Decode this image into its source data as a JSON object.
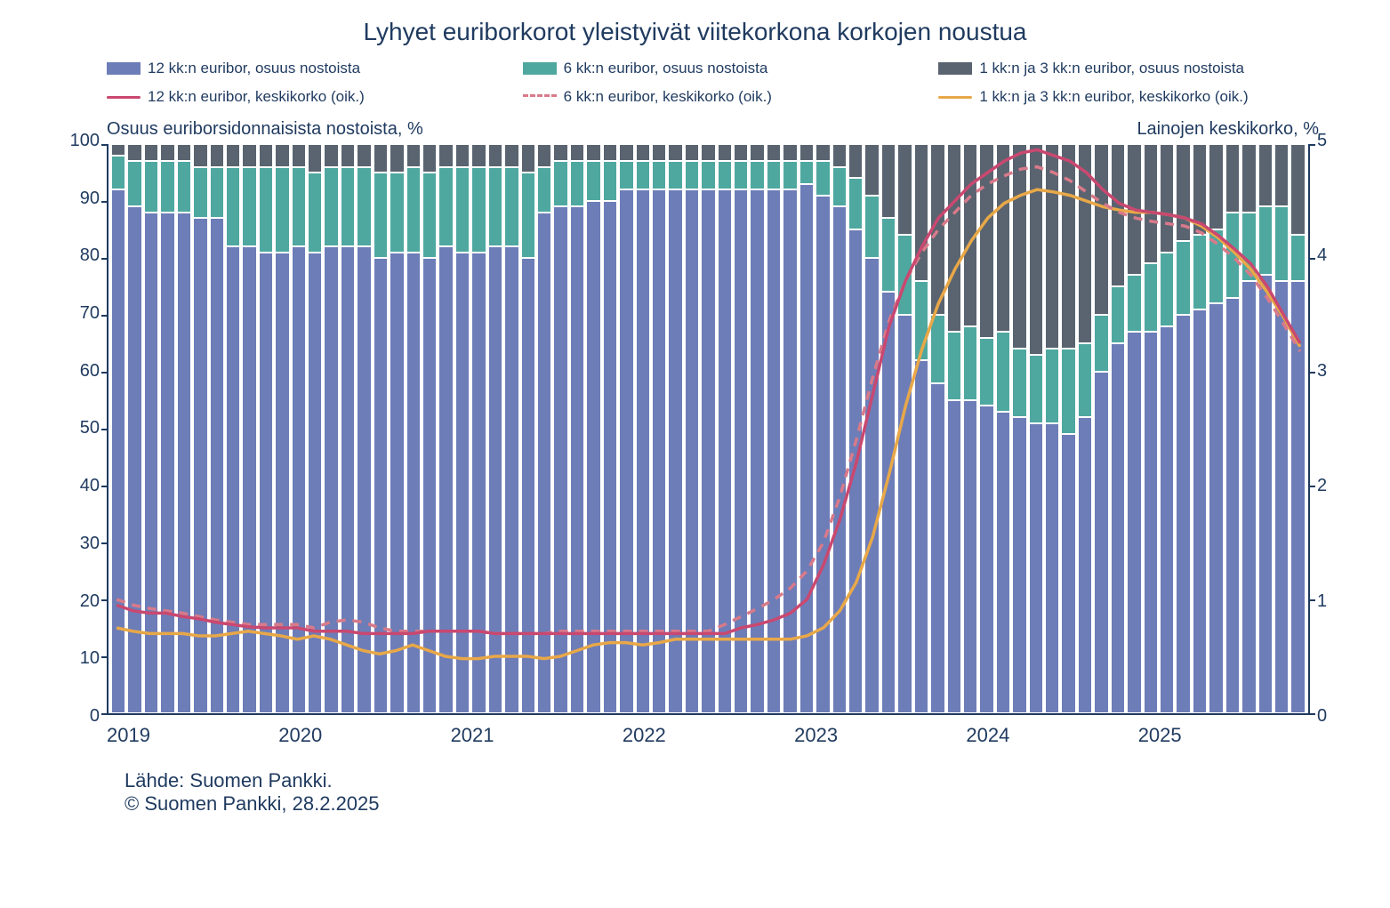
{
  "title": "Lyhyet euriborkorot yleistyivät viitekorkona korkojen noustua",
  "legend": {
    "bar12": "12 kk:n euribor, osuus nostoista",
    "bar6": "6 kk:n euribor, osuus nostoista",
    "bar13": "1 kk:n ja 3 kk:n euribor, osuus nostoista",
    "line12": "12 kk:n euribor, keskikorko (oik.)",
    "line6": "6 kk:n euribor, keskikorko (oik.)",
    "line13": "1 kk:n ja 3 kk:n euribor, keskikorko (oik.)"
  },
  "axis_titles": {
    "left": "Osuus euriborsidonnaisista nostoista, %",
    "right": "Lainojen keskikorko, %"
  },
  "footer": {
    "source": "Lähde: Suomen Pankki.",
    "copyright": "© Suomen Pankki, 28.2.2025"
  },
  "colors": {
    "bar12": "#6d7db8",
    "bar6": "#4fa8a0",
    "bar13": "#5a6470",
    "line12": "#c94870",
    "line6": "#d87a8a",
    "line13": "#e8a848",
    "text": "#1f3a5f"
  },
  "chart": {
    "type": "stacked-bar-with-lines",
    "left_axis": {
      "min": 0,
      "max": 100,
      "ticks": [
        100,
        90,
        80,
        70,
        60,
        50,
        40,
        30,
        20,
        10,
        0
      ]
    },
    "right_axis": {
      "min": 0,
      "max": 5,
      "ticks": [
        5,
        4,
        3,
        2,
        1,
        0
      ]
    },
    "x_labels": [
      "2019",
      "2020",
      "2021",
      "2022",
      "2023",
      "2024",
      "2025"
    ],
    "n_points": 73,
    "stacked_shares": {
      "s12": [
        92,
        89,
        88,
        88,
        88,
        87,
        87,
        82,
        82,
        81,
        81,
        82,
        81,
        82,
        82,
        82,
        80,
        81,
        81,
        80,
        82,
        81,
        81,
        82,
        82,
        80,
        88,
        89,
        89,
        90,
        90,
        92,
        92,
        92,
        92,
        92,
        92,
        92,
        92,
        92,
        92,
        92,
        93,
        91,
        89,
        85,
        80,
        74,
        70,
        62,
        58,
        55,
        55,
        54,
        53,
        52,
        51,
        51,
        49,
        52,
        60,
        65,
        67,
        67,
        68,
        70,
        71,
        72,
        73,
        76,
        77,
        76,
        76
      ],
      "s6": [
        6,
        8,
        9,
        9,
        9,
        9,
        9,
        14,
        14,
        15,
        15,
        14,
        14,
        14,
        14,
        14,
        15,
        14,
        15,
        15,
        14,
        15,
        15,
        14,
        14,
        15,
        8,
        8,
        8,
        7,
        7,
        5,
        5,
        5,
        5,
        5,
        5,
        5,
        5,
        5,
        5,
        5,
        4,
        6,
        7,
        9,
        11,
        13,
        14,
        14,
        12,
        12,
        13,
        12,
        14,
        12,
        12,
        13,
        15,
        13,
        10,
        10,
        10,
        12,
        13,
        13,
        13,
        13,
        15,
        12,
        12,
        13,
        8
      ],
      "s13": [
        2,
        3,
        3,
        3,
        3,
        4,
        4,
        4,
        4,
        4,
        4,
        4,
        5,
        4,
        4,
        4,
        5,
        5,
        4,
        5,
        4,
        4,
        4,
        4,
        4,
        5,
        4,
        3,
        3,
        3,
        3,
        3,
        3,
        3,
        3,
        3,
        3,
        3,
        3,
        3,
        3,
        3,
        3,
        3,
        4,
        6,
        9,
        13,
        16,
        24,
        30,
        33,
        32,
        34,
        33,
        36,
        37,
        36,
        36,
        35,
        30,
        25,
        23,
        21,
        19,
        17,
        16,
        15,
        12,
        12,
        11,
        11,
        16
      ]
    },
    "lines": {
      "r12": [
        0.95,
        0.9,
        0.88,
        0.88,
        0.85,
        0.83,
        0.8,
        0.78,
        0.76,
        0.75,
        0.75,
        0.75,
        0.72,
        0.72,
        0.72,
        0.7,
        0.7,
        0.7,
        0.7,
        0.72,
        0.72,
        0.72,
        0.72,
        0.7,
        0.7,
        0.7,
        0.7,
        0.7,
        0.7,
        0.7,
        0.7,
        0.7,
        0.7,
        0.7,
        0.7,
        0.7,
        0.7,
        0.7,
        0.75,
        0.78,
        0.82,
        0.88,
        1.0,
        1.3,
        1.7,
        2.2,
        2.8,
        3.4,
        3.8,
        4.1,
        4.35,
        4.5,
        4.65,
        4.75,
        4.85,
        4.92,
        4.95,
        4.9,
        4.85,
        4.75,
        4.6,
        4.48,
        4.42,
        4.4,
        4.38,
        4.35,
        4.3,
        4.2,
        4.08,
        3.95,
        3.75,
        3.5,
        3.25
      ],
      "r6": [
        1.0,
        0.95,
        0.92,
        0.9,
        0.88,
        0.85,
        0.82,
        0.8,
        0.78,
        0.78,
        0.78,
        0.78,
        0.75,
        0.8,
        0.82,
        0.8,
        0.75,
        0.72,
        0.72,
        0.72,
        0.72,
        0.72,
        0.72,
        0.7,
        0.7,
        0.7,
        0.7,
        0.72,
        0.72,
        0.72,
        0.72,
        0.72,
        0.72,
        0.72,
        0.72,
        0.72,
        0.72,
        0.78,
        0.85,
        0.92,
        1.0,
        1.1,
        1.25,
        1.5,
        1.9,
        2.4,
        2.95,
        3.45,
        3.8,
        4.05,
        4.25,
        4.4,
        4.55,
        4.65,
        4.72,
        4.78,
        4.8,
        4.75,
        4.68,
        4.58,
        4.48,
        4.4,
        4.35,
        4.32,
        4.3,
        4.28,
        4.22,
        4.12,
        4.0,
        3.85,
        3.65,
        3.42,
        3.18
      ],
      "r13": [
        0.75,
        0.72,
        0.7,
        0.7,
        0.7,
        0.68,
        0.68,
        0.7,
        0.72,
        0.7,
        0.68,
        0.65,
        0.68,
        0.65,
        0.6,
        0.55,
        0.52,
        0.55,
        0.6,
        0.55,
        0.5,
        0.48,
        0.48,
        0.5,
        0.5,
        0.5,
        0.48,
        0.5,
        0.55,
        0.6,
        0.62,
        0.62,
        0.6,
        0.62,
        0.65,
        0.65,
        0.65,
        0.65,
        0.65,
        0.65,
        0.65,
        0.65,
        0.68,
        0.75,
        0.9,
        1.15,
        1.55,
        2.1,
        2.7,
        3.2,
        3.6,
        3.9,
        4.15,
        4.35,
        4.48,
        4.55,
        4.6,
        4.58,
        4.55,
        4.5,
        4.45,
        4.42,
        4.4,
        4.4,
        4.38,
        4.35,
        4.28,
        4.18,
        4.05,
        3.9,
        3.7,
        3.48,
        3.22
      ]
    }
  }
}
